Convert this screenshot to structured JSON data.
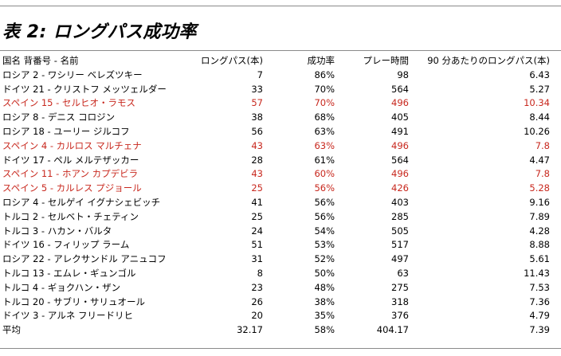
{
  "title": "表 2: ロングパス成功率",
  "columns": {
    "name": "国名 背番号 - 名前",
    "long_passes": "ロングパス(本)",
    "success_rate": "成功率",
    "play_time": "プレー時間",
    "per90": "90 分あたりのロングパス(本)"
  },
  "rows": [
    {
      "name": "ロシア 2 - ワシリー ベレズツキー",
      "long_passes": "7",
      "success_rate": "86%",
      "play_time": "98",
      "per90": "6.43",
      "highlight": false
    },
    {
      "name": "ドイツ 21 - クリストフ メッツェルダー",
      "long_passes": "33",
      "success_rate": "70%",
      "play_time": "564",
      "per90": "5.27",
      "highlight": false
    },
    {
      "name": "スペイン 15 - セルヒオ・ラモス",
      "long_passes": "57",
      "success_rate": "70%",
      "play_time": "496",
      "per90": "10.34",
      "highlight": true
    },
    {
      "name": "ロシア 8 - デニス コロジン",
      "long_passes": "38",
      "success_rate": "68%",
      "play_time": "405",
      "per90": "8.44",
      "highlight": false
    },
    {
      "name": "ロシア 18 - ユーリー ジルコフ",
      "long_passes": "56",
      "success_rate": "63%",
      "play_time": "491",
      "per90": "10.26",
      "highlight": false
    },
    {
      "name": "スペイン 4 - カルロス マルチェナ",
      "long_passes": "43",
      "success_rate": "63%",
      "play_time": "496",
      "per90": "7.8",
      "highlight": true
    },
    {
      "name": "ドイツ 17 - ペル メルテザッカー",
      "long_passes": "28",
      "success_rate": "61%",
      "play_time": "564",
      "per90": "4.47",
      "highlight": false
    },
    {
      "name": "スペイン 11 - ホアン カプデビラ",
      "long_passes": "43",
      "success_rate": "60%",
      "play_time": "496",
      "per90": "7.8",
      "highlight": true
    },
    {
      "name": "スペイン 5 - カルレス プジョール",
      "long_passes": "25",
      "success_rate": "56%",
      "play_time": "426",
      "per90": "5.28",
      "highlight": true
    },
    {
      "name": "ロシア 4 - セルゲイ イグナシェビッチ",
      "long_passes": "41",
      "success_rate": "56%",
      "play_time": "403",
      "per90": "9.16",
      "highlight": false
    },
    {
      "name": "トルコ 2 - セルベト・チェティン",
      "long_passes": "25",
      "success_rate": "56%",
      "play_time": "285",
      "per90": "7.89",
      "highlight": false
    },
    {
      "name": "トルコ 3 - ハカン・バルタ",
      "long_passes": "24",
      "success_rate": "54%",
      "play_time": "505",
      "per90": "4.28",
      "highlight": false
    },
    {
      "name": "ドイツ 16 - フィリップ ラーム",
      "long_passes": "51",
      "success_rate": "53%",
      "play_time": "517",
      "per90": "8.88",
      "highlight": false
    },
    {
      "name": "ロシア 22 - アレクサンドル アニュコフ",
      "long_passes": "31",
      "success_rate": "52%",
      "play_time": "497",
      "per90": "5.61",
      "highlight": false
    },
    {
      "name": "トルコ 13 - エムレ・ギュンゴル",
      "long_passes": "8",
      "success_rate": "50%",
      "play_time": "63",
      "per90": "11.43",
      "highlight": false
    },
    {
      "name": "トルコ 4 - ギョクハン・ザン",
      "long_passes": "23",
      "success_rate": "48%",
      "play_time": "275",
      "per90": "7.53",
      "highlight": false
    },
    {
      "name": "トルコ 20 - サブリ・サリュオール",
      "long_passes": "26",
      "success_rate": "38%",
      "play_time": "318",
      "per90": "7.36",
      "highlight": false
    },
    {
      "name": "ドイツ 3 - アルネ フリードリヒ",
      "long_passes": "20",
      "success_rate": "35%",
      "play_time": "376",
      "per90": "4.79",
      "highlight": false
    }
  ],
  "average": {
    "name": "平均",
    "long_passes": "32.17",
    "success_rate": "58%",
    "play_time": "404.17",
    "per90": "7.39"
  },
  "colors": {
    "highlight_text": "#c8281e",
    "rule": "#8a8a8a"
  }
}
